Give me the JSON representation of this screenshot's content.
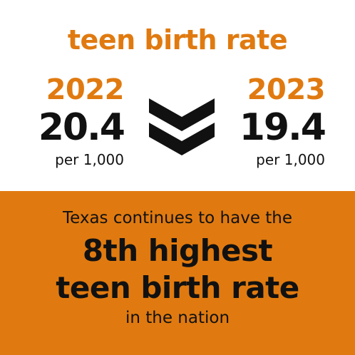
{
  "colors": {
    "accent": "#e07a10",
    "text": "#111111",
    "background": "#ffffff"
  },
  "heading": "teen birth rate",
  "left": {
    "year": "2022",
    "value": "20.4",
    "unit": "per 1,000"
  },
  "right": {
    "year": "2023",
    "value": "19.4",
    "unit": "per 1,000"
  },
  "icon": "double-chevron-down-icon",
  "banner": {
    "line1": "Texas continues to have the",
    "line2": "8th highest",
    "line3": "teen birth rate",
    "line4": "in the nation"
  }
}
